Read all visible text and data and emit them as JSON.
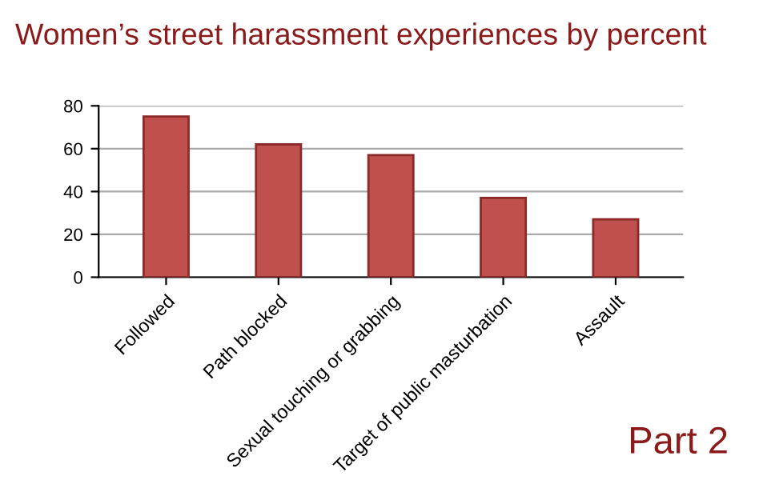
{
  "chart_data": {
    "type": "bar",
    "title": "Women’s street harassment experiences by percent",
    "categories": [
      "Followed",
      "Path blocked",
      "Sexual touching or grabbing",
      "Target of public masturbation",
      "Assault"
    ],
    "values": [
      75,
      62,
      57,
      37,
      27
    ],
    "color": "#c0504d",
    "ylim": [
      0,
      80
    ],
    "yticks": [
      0,
      20,
      40,
      60,
      80
    ],
    "grid": "y",
    "annotations": [
      "Part 2"
    ]
  }
}
